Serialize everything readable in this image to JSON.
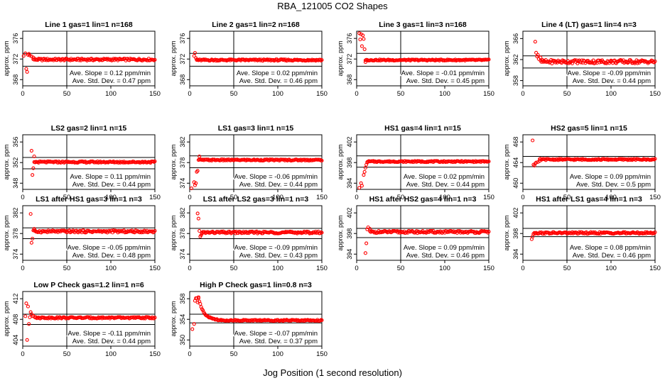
{
  "figure": {
    "title": "RBA_121005  CO2 Shapes",
    "xlabel": "Jog Position (1 second resolution)",
    "ylabel": "approx. ppm",
    "colors": {
      "points": "#ff0000",
      "axes": "#000000",
      "background": "#ffffff"
    }
  },
  "chart_data": [
    {
      "type": "scatter",
      "title": "Line 1 gas=1 lin=1 n=168",
      "ylabel": "approx. ppm",
      "xlim": [
        0,
        150
      ],
      "ylim": [
        366.8,
        377.4
      ],
      "xticks": [
        0,
        50,
        100,
        150
      ],
      "yticks": [
        368,
        372,
        376
      ],
      "hlines": [
        373.1,
        370.6
      ],
      "vline": 50,
      "level": 371.9,
      "noise": 0.2,
      "x": [
        1,
        3,
        4,
        5,
        6,
        7,
        8,
        10,
        12
      ],
      "y": [
        372.6,
        373.1,
        370.1,
        369.5,
        372.8,
        373.0,
        372.7,
        372.5,
        372.3
      ],
      "series_range": [
        12,
        150
      ],
      "slope_text": "Ave. Slope = 0.12  ppm/min",
      "std_text": "Ave. Std. Dev. = 0.47  ppm"
    },
    {
      "type": "scatter",
      "title": "Line 2 gas=1 lin=2 n=168",
      "ylabel": "approx. ppm",
      "xlim": [
        0,
        150
      ],
      "ylim": [
        366.8,
        377.4
      ],
      "xticks": [
        0,
        50,
        100,
        150
      ],
      "yticks": [
        368,
        372,
        376
      ],
      "hlines": [
        373.1,
        370.6
      ],
      "vline": 50,
      "level": 371.8,
      "noise": 0.15,
      "x": [
        5,
        6,
        7,
        8
      ],
      "y": [
        372.6,
        373.2,
        372.2,
        371.9
      ],
      "series_range": [
        8,
        150
      ],
      "slope_text": "Ave. Slope = 0.02  ppm/min",
      "std_text": "Ave. Std. Dev. = 0.46  ppm"
    },
    {
      "type": "scatter",
      "title": "Line 3 gas=1 lin=3 n=168",
      "ylabel": "approx. ppm",
      "xlim": [
        0,
        150
      ],
      "ylim": [
        366.8,
        377.4
      ],
      "xticks": [
        0,
        50,
        100,
        150
      ],
      "yticks": [
        368,
        372,
        376
      ],
      "hlines": [
        373.1,
        370.6
      ],
      "vline": 50,
      "level": 371.8,
      "noise": 0.12,
      "x": [
        3,
        4,
        5,
        6,
        7,
        8,
        9,
        10
      ],
      "y": [
        377.0,
        375.8,
        376.8,
        374.5,
        376.6,
        375.9,
        373.9,
        371.4
      ],
      "series_range": [
        10,
        150
      ],
      "slope_text": "Ave. Slope = -0.01  ppm/min",
      "std_text": "Ave. Std. Dev. = 0.45  ppm"
    },
    {
      "type": "scatter",
      "title": "Line 4 (LT) gas=1 lin=4 n=3",
      "ylabel": "approx. ppm",
      "xlim": [
        0,
        150
      ],
      "ylim": [
        357.0,
        367.4
      ],
      "xticks": [
        0,
        50,
        100,
        150
      ],
      "yticks": [
        358,
        362,
        366
      ],
      "hlines": [
        362.7,
        360.4
      ],
      "vline": 50,
      "level": 361.6,
      "noise": 0.35,
      "x": [
        14,
        15,
        16,
        17,
        18,
        20,
        22
      ],
      "y": [
        365.4,
        363.3,
        362.6,
        362.9,
        362.1,
        362.4,
        361.9
      ],
      "series_range": [
        20,
        150
      ],
      "slope_text": "Ave. Slope = -0.09  ppm/min",
      "std_text": "Ave. Std. Dev. = 0.44  ppm"
    },
    {
      "type": "scatter",
      "title": "LS2 gas=2 lin=1 n=15",
      "ylabel": "approx. ppm",
      "xlim": [
        0,
        150
      ],
      "ylim": [
        346.8,
        357.4
      ],
      "xticks": [
        0,
        50,
        100,
        150
      ],
      "yticks": [
        348,
        352,
        356
      ],
      "hlines": [
        353.0,
        350.8
      ],
      "vline": 50,
      "level": 352.1,
      "noise": 0.15,
      "x": [
        10,
        11,
        12,
        13
      ],
      "y": [
        354.3,
        349.6,
        350.9,
        353.2
      ],
      "series_range": [
        13,
        150
      ],
      "slope_text": "Ave. Slope = 0.11  ppm/min",
      "std_text": "Ave. Std. Dev. = 0.44  ppm"
    },
    {
      "type": "scatter",
      "title": "LS1 gas=3 lin=1 n=15",
      "ylabel": "approx. ppm",
      "xlim": [
        0,
        150
      ],
      "ylim": [
        372.8,
        383.4
      ],
      "xticks": [
        0,
        50,
        100,
        150
      ],
      "yticks": [
        374,
        378,
        382
      ],
      "hlines": [
        379.3,
        377.0
      ],
      "vline": 50,
      "level": 378.5,
      "noise": 0.13,
      "x": [
        2,
        5,
        6,
        7,
        8,
        9,
        10,
        11
      ],
      "y": [
        373.0,
        374.2,
        373.6,
        374.0,
        376.2,
        376.4,
        378.5,
        379.2
      ],
      "series_range": [
        11,
        150
      ],
      "slope_text": "Ave. Slope = -0.06  ppm/min",
      "std_text": "Ave. Std. Dev. = 0.44  ppm"
    },
    {
      "type": "scatter",
      "title": "HS1 gas=4 lin=1 n=15",
      "ylabel": "approx. ppm",
      "xlim": [
        0,
        150
      ],
      "ylim": [
        392.8,
        403.4
      ],
      "xticks": [
        0,
        50,
        100,
        150
      ],
      "yticks": [
        394,
        398,
        402
      ],
      "hlines": [
        399.3,
        397.1
      ],
      "vline": 50,
      "level": 398.2,
      "noise": 0.12,
      "x": [
        3,
        5,
        6,
        8,
        9,
        10,
        11,
        12
      ],
      "y": [
        393.1,
        394.0,
        393.5,
        395.6,
        396.2,
        397.0,
        397.6,
        398.0
      ],
      "series_range": [
        12,
        150
      ],
      "slope_text": "Ave. Slope = 0.02  ppm/min",
      "std_text": "Ave. Std. Dev. = 0.44  ppm"
    },
    {
      "type": "scatter",
      "title": "HS2 gas=5 lin=1 n=15",
      "ylabel": "approx. ppm",
      "xlim": [
        0,
        150
      ],
      "ylim": [
        458.8,
        469.4
      ],
      "xticks": [
        0,
        50,
        100,
        150
      ],
      "yticks": [
        460,
        464,
        468
      ],
      "hlines": [
        465.2,
        463.2
      ],
      "vline": 50,
      "level": 464.6,
      "noise": 0.13,
      "x": [
        11,
        12,
        13,
        14,
        15,
        17,
        19
      ],
      "y": [
        468.3,
        463.6,
        463.4,
        463.8,
        464.0,
        464.1,
        464.3
      ],
      "series_range": [
        19,
        150
      ],
      "slope_text": "Ave. Slope = 0.09  ppm/min",
      "std_text": "Ave. Std. Dev. = 0.5  ppm"
    },
    {
      "type": "scatter",
      "title": "LS1 after HS1 gas=3 lin=1 n=3",
      "ylabel": "approx. ppm",
      "xlim": [
        0,
        150
      ],
      "ylim": [
        372.8,
        383.4
      ],
      "xticks": [
        0,
        50,
        100,
        150
      ],
      "yticks": [
        374,
        378,
        382
      ],
      "hlines": [
        379.1,
        377.0
      ],
      "vline": 50,
      "level": 378.4,
      "noise": 0.22,
      "x": [
        9,
        10,
        11,
        12,
        13
      ],
      "y": [
        381.8,
        376.2,
        377.0,
        378.6,
        378.9
      ],
      "series_range": [
        13,
        150
      ],
      "slope_text": "Ave. Slope = -0.05  ppm/min",
      "std_text": "Ave. Std. Dev. = 0.48  ppm"
    },
    {
      "type": "scatter",
      "title": "LS1 after LS2 gas=3 lin=1 n=3",
      "ylabel": "approx. ppm",
      "xlim": [
        0,
        150
      ],
      "ylim": [
        372.8,
        383.4
      ],
      "xticks": [
        0,
        50,
        100,
        150
      ],
      "yticks": [
        374,
        378,
        382
      ],
      "hlines": [
        379.0,
        377.0
      ],
      "vline": 50,
      "level": 378.2,
      "noise": 0.2,
      "x": [
        9,
        10,
        11,
        12,
        13,
        14
      ],
      "y": [
        381.9,
        380.9,
        378.5,
        377.4,
        377.7,
        378.0
      ],
      "series_range": [
        14,
        150
      ],
      "slope_text": "Ave. Slope = -0.09  ppm/min",
      "std_text": "Ave. Std. Dev. = 0.43  ppm"
    },
    {
      "type": "scatter",
      "title": "HS1 after HS2 gas=4 lin=1 n=3",
      "ylabel": "approx. ppm",
      "xlim": [
        0,
        150
      ],
      "ylim": [
        392.8,
        403.4
      ],
      "xticks": [
        0,
        50,
        100,
        150
      ],
      "yticks": [
        394,
        398,
        402
      ],
      "hlines": [
        399.0,
        397.2
      ],
      "vline": 50,
      "level": 398.3,
      "noise": 0.22,
      "x": [
        10,
        11,
        12,
        13,
        15
      ],
      "y": [
        394.2,
        396.1,
        398.8,
        399.2,
        398.9
      ],
      "series_range": [
        15,
        150
      ],
      "slope_text": "Ave. Slope = 0.09  ppm/min",
      "std_text": "Ave. Std. Dev. = 0.46  ppm"
    },
    {
      "type": "scatter",
      "title": "HS1 after LS1 gas=4 lin=1 n=3",
      "ylabel": "approx. ppm",
      "xlim": [
        0,
        150
      ],
      "ylim": [
        392.8,
        403.4
      ],
      "xticks": [
        0,
        50,
        100,
        150
      ],
      "yticks": [
        394,
        398,
        402
      ],
      "hlines": [
        399.0,
        397.4
      ],
      "vline": 50,
      "level": 398.1,
      "noise": 0.18,
      "x": [
        10,
        11,
        12
      ],
      "y": [
        396.9,
        397.4,
        397.9
      ],
      "series_range": [
        12,
        150
      ],
      "slope_text": "Ave. Slope = 0.08  ppm/min",
      "std_text": "Ave. Std. Dev. = 0.46  ppm"
    },
    {
      "type": "scatter",
      "title": "Low P Check gas=1.2 lin=1 n=6",
      "ylabel": "approx. ppm",
      "xlim": [
        0,
        150
      ],
      "ylim": [
        402.8,
        413.4
      ],
      "xticks": [
        0,
        50,
        100,
        150
      ],
      "yticks": [
        404,
        408,
        412
      ],
      "hlines": [
        409.0,
        407.0
      ],
      "vline": 50,
      "level": 408.3,
      "noise": 0.15,
      "x": [
        3,
        4,
        5,
        6,
        7,
        8,
        9,
        10,
        11,
        12,
        14
      ],
      "y": [
        408.6,
        411.1,
        404.0,
        410.5,
        407.1,
        408.4,
        409.4,
        409.0,
        408.6,
        408.7,
        408.4
      ],
      "series_range": [
        14,
        150
      ],
      "slope_text": "Ave. Slope = -0.11  ppm/min",
      "std_text": "Ave. Std. Dev. = 0.44  ppm"
    },
    {
      "type": "scatter",
      "title": "High P Check gas=1 lin=0.8 n=3",
      "ylabel": "approx. ppm",
      "xlim": [
        0,
        150
      ],
      "ylim": [
        348.8,
        359.4
      ],
      "xticks": [
        0,
        50,
        100,
        150
      ],
      "yticks": [
        350,
        354,
        358
      ],
      "hlines": [
        355.0,
        353.3
      ],
      "vline": 50,
      "level": 353.8,
      "noise": 0.12,
      "x": [
        3,
        5,
        6,
        7,
        8,
        9,
        10
      ],
      "y": [
        352.1,
        353.1,
        357.6,
        358.1,
        358.1,
        357.3,
        358.3
      ],
      "decay": {
        "from": 10,
        "to": 36,
        "amp": 4.4,
        "tau": 6
      },
      "series_range": [
        36,
        150
      ],
      "slope_text": "Ave. Slope = -0.07  ppm/min",
      "std_text": "Ave. Std. Dev. = 0.37  ppm"
    }
  ]
}
